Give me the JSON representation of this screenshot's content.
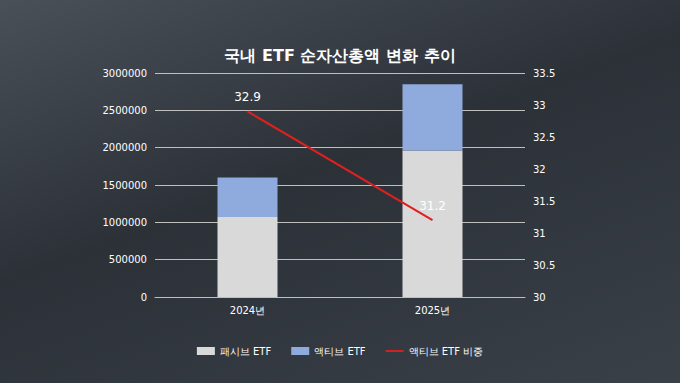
{
  "chart_data": {
    "type": "bar",
    "title": "국내 ETF 순자산총액 변화 추이",
    "categories": [
      "2024년",
      "2025년"
    ],
    "stacked": true,
    "legend": "bottom",
    "grid": true,
    "series": [
      {
        "name": "패시브 ETF",
        "type": "bar",
        "color": "#d9d9d9",
        "values": [
          1073000,
          1961000
        ]
      },
      {
        "name": "액티브 ETF",
        "type": "bar",
        "color": "#8faadc",
        "values": [
          527000,
          889000
        ]
      },
      {
        "name": "액티브 ETF 비중",
        "type": "line",
        "axis": "y2",
        "color": "#e0201e",
        "marker": "none",
        "line_style": "solid",
        "data_labels": true,
        "values": [
          32.9,
          31.2
        ]
      }
    ],
    "ylim": [
      0,
      3000000
    ],
    "yticks": [
      0,
      500000,
      1000000,
      1500000,
      2000000,
      2500000,
      3000000
    ],
    "y2lim": [
      30,
      33.5
    ],
    "y2ticks": [
      30,
      30.5,
      31,
      31.5,
      32,
      32.5,
      33,
      33.5
    ]
  }
}
